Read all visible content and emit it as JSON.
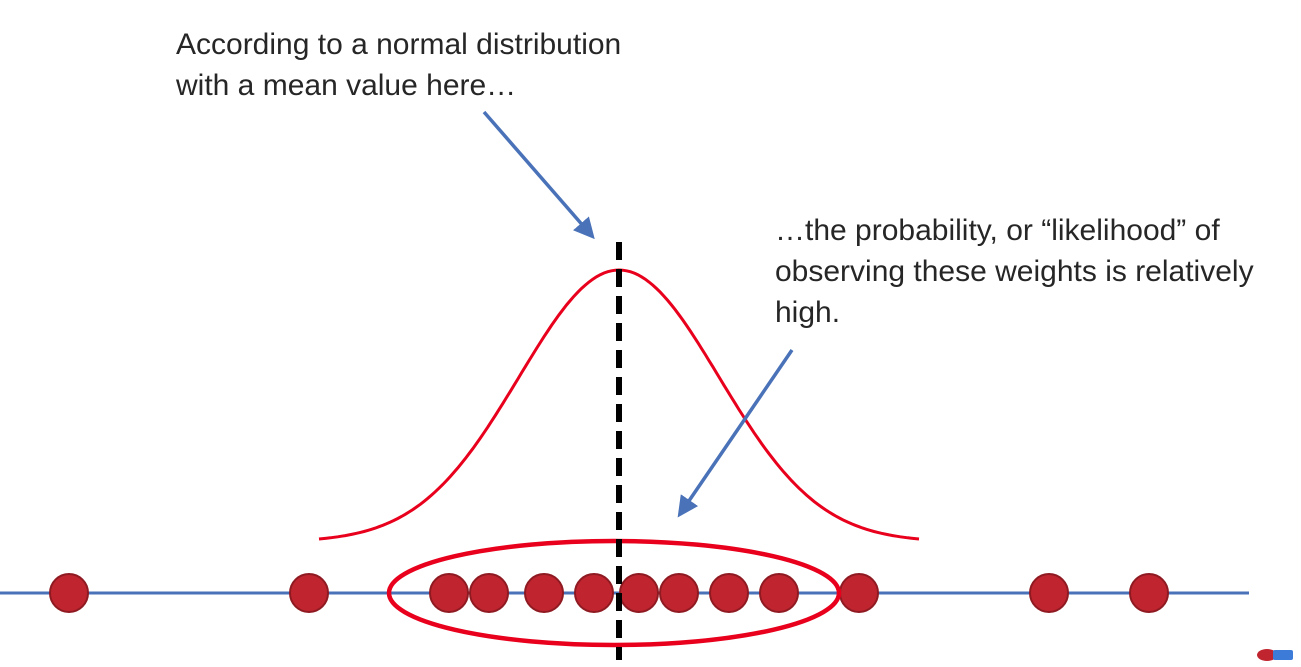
{
  "captions": {
    "top": {
      "line1": "According to a normal distribution",
      "line2": "with a mean value here…"
    },
    "right": {
      "line1": "…the probability, or “likelihood” of",
      "line2": "observing these weights is relatively",
      "line3": "high."
    }
  },
  "diagram": {
    "mean": 0,
    "sd": 1,
    "curve_range": [
      -3,
      3
    ],
    "observations": [
      -5.5,
      -3.1,
      -1.7,
      -1.3,
      -0.75,
      -0.25,
      0.2,
      0.6,
      1.1,
      1.6,
      2.4,
      4.3,
      5.3
    ],
    "highlighted_range": [
      -1.7,
      1.6
    ],
    "axis_range": [
      -6.3,
      6.3
    ]
  },
  "colors": {
    "text": "#262626",
    "axis": "#4a72b8",
    "curve": "#e8001c",
    "dot_fill": "#c0252f",
    "dot_stroke": "#8f1a22",
    "ellipse": "#e8001c",
    "arrow": "#4a72b8",
    "mean_line": "#000000"
  }
}
